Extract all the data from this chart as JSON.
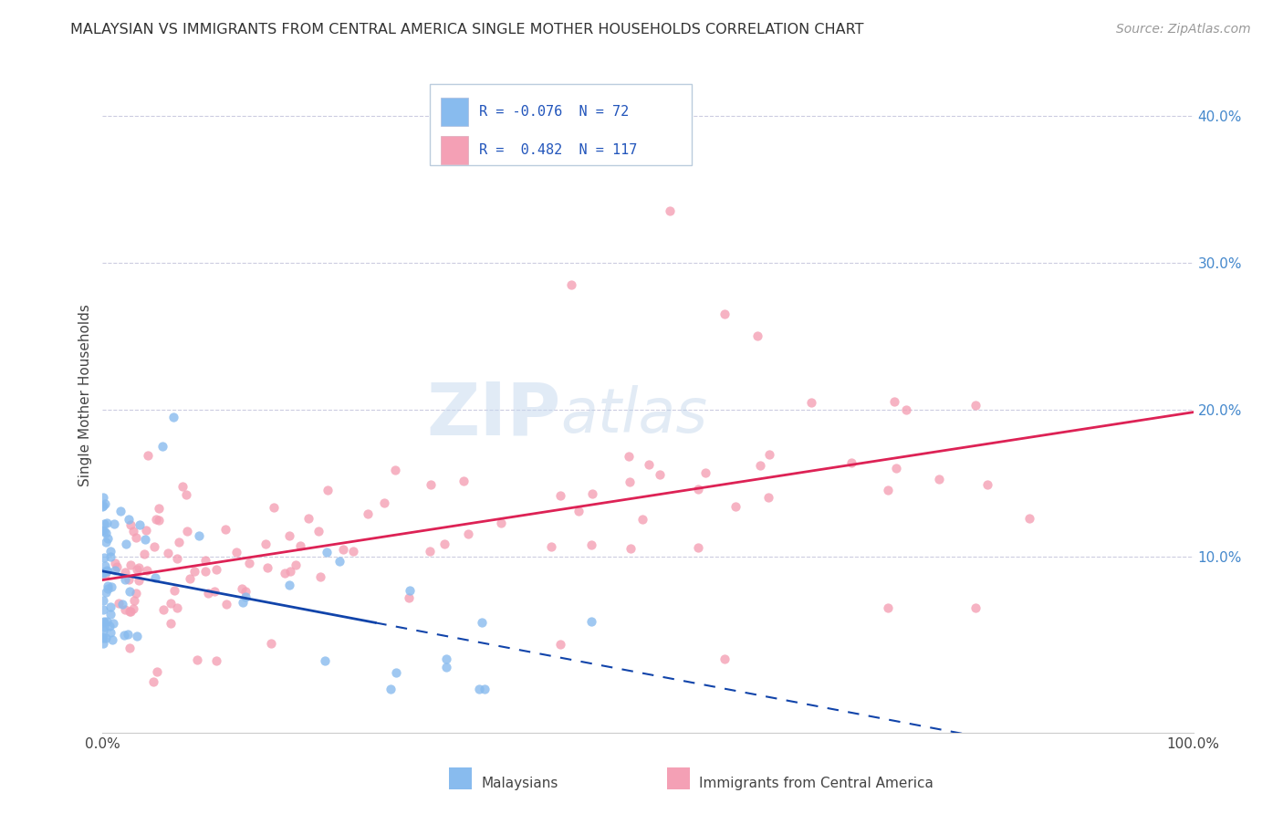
{
  "title": "MALAYSIAN VS IMMIGRANTS FROM CENTRAL AMERICA SINGLE MOTHER HOUSEHOLDS CORRELATION CHART",
  "source": "Source: ZipAtlas.com",
  "ylabel": "Single Mother Households",
  "malaysian_R": -0.076,
  "malaysian_N": 72,
  "central_america_R": 0.482,
  "central_america_N": 117,
  "xlim": [
    0,
    1.0
  ],
  "ylim": [
    -0.02,
    0.44
  ],
  "grid_color": "#aaaacc",
  "background_color": "#ffffff",
  "malaysian_color": "#88bbee",
  "central_america_color": "#f4a0b5",
  "malaysian_line_color": "#1144aa",
  "central_america_line_color": "#dd2255",
  "watermark_zip": "ZIP",
  "watermark_atlas": "atlas"
}
